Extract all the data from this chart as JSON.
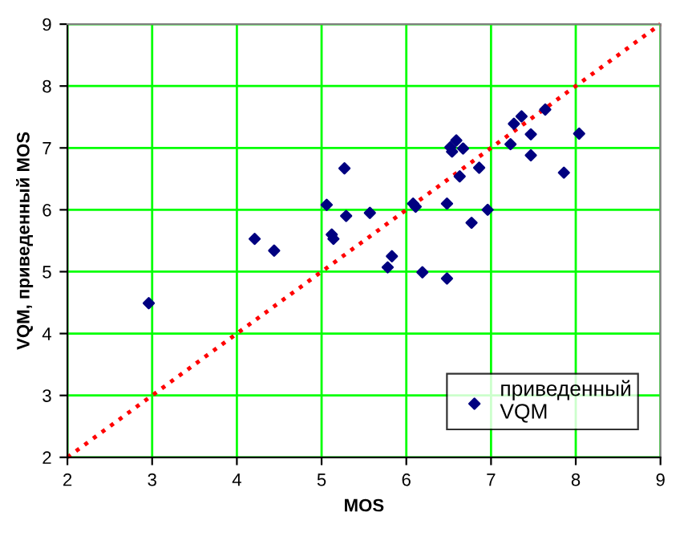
{
  "chart_data": {
    "type": "scatter",
    "xlabel": "MOS",
    "ylabel": "VQM, приведенный MOS",
    "xlim": [
      2,
      9
    ],
    "ylim": [
      2,
      9
    ],
    "xticks": [
      2,
      3,
      4,
      5,
      6,
      7,
      8,
      9
    ],
    "yticks": [
      2,
      3,
      4,
      5,
      6,
      7,
      8,
      9
    ],
    "grid": true,
    "legend": "bottom right",
    "series": [
      {
        "name": "приведенный\nVQM",
        "color": "#000080",
        "marker": "diamond",
        "x": [
          2.96,
          4.21,
          4.44,
          5.06,
          5.27,
          5.29,
          5.12,
          5.14,
          5.57,
          5.83,
          5.78,
          6.19,
          6.48,
          6.08,
          6.11,
          6.48,
          6.77,
          6.96,
          6.63,
          6.86,
          6.52,
          6.54,
          6.59,
          6.67,
          7.23,
          7.27,
          7.36,
          7.47,
          7.47,
          7.64,
          7.86,
          8.04
        ],
        "values": [
          4.49,
          5.53,
          5.34,
          6.08,
          6.67,
          5.9,
          5.6,
          5.53,
          5.95,
          5.25,
          5.07,
          4.99,
          4.89,
          6.1,
          6.05,
          6.1,
          5.79,
          6.0,
          6.54,
          6.68,
          7.01,
          6.94,
          7.12,
          6.99,
          7.06,
          7.39,
          7.51,
          7.22,
          6.88,
          7.62,
          6.6,
          7.23
        ]
      },
      {
        "type": "line",
        "color": "#ff0000",
        "line_style": "dotted",
        "x": [
          2,
          9
        ],
        "values": [
          2,
          9
        ]
      }
    ]
  }
}
